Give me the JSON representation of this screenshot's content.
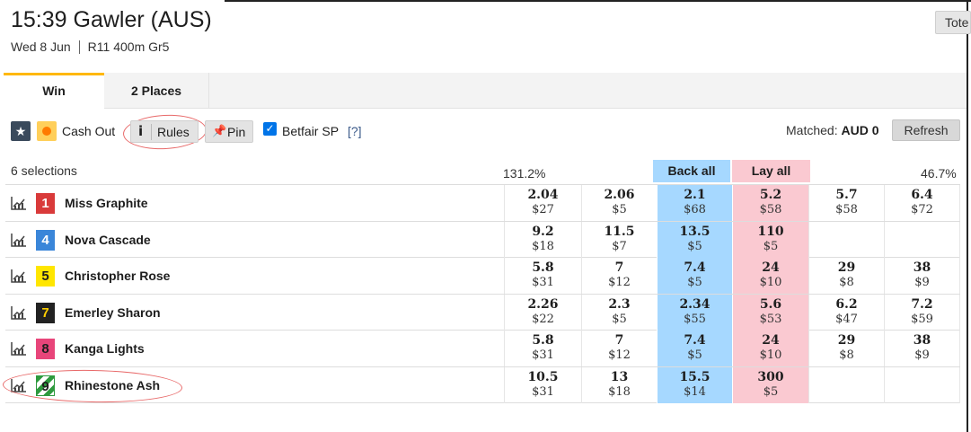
{
  "header": {
    "title": "15:39 Gawler (AUS)",
    "date": "Wed 8 Jun",
    "race_info": "R11 400m Gr5",
    "tote_label": "Tote"
  },
  "tabs": [
    {
      "label": "Win",
      "active": true
    },
    {
      "label": "2 Places",
      "active": false
    }
  ],
  "toolbar": {
    "cash_out_label": "Cash Out",
    "rules_label": "Rules",
    "pin_label": "Pin",
    "betfair_sp_label": "Betfair SP",
    "betfair_sp_checked": true,
    "help_label": "[?]",
    "matched_label": "Matched:",
    "matched_value": "AUD 0",
    "refresh_label": "Refresh"
  },
  "market": {
    "selections_label": "6 selections",
    "back_book": "131.2%",
    "lay_book": "46.7%",
    "back_all_label": "Back all",
    "lay_all_label": "Lay all"
  },
  "runners": [
    {
      "number": "1",
      "name": "Miss Graphite",
      "cloth_bg": "#d93a3a",
      "cloth_fg": "#ffffff",
      "prices": [
        [
          "2.04",
          "$27"
        ],
        [
          "2.06",
          "$5"
        ],
        [
          "2.1",
          "$68"
        ],
        [
          "5.2",
          "$58"
        ],
        [
          "5.7",
          "$58"
        ],
        [
          "6.4",
          "$72"
        ]
      ]
    },
    {
      "number": "4",
      "name": "Nova Cascade",
      "cloth_bg": "#3a86d9",
      "cloth_fg": "#ffffff",
      "prices": [
        [
          "9.2",
          "$18"
        ],
        [
          "11.5",
          "$7"
        ],
        [
          "13.5",
          "$5"
        ],
        [
          "110",
          "$5"
        ],
        [
          "",
          ""
        ],
        [
          "",
          ""
        ]
      ]
    },
    {
      "number": "5",
      "name": "Christopher Rose",
      "cloth_bg": "#ffe600",
      "cloth_fg": "#1e1e1e",
      "prices": [
        [
          "5.8",
          "$31"
        ],
        [
          "7",
          "$12"
        ],
        [
          "7.4",
          "$5"
        ],
        [
          "24",
          "$10"
        ],
        [
          "29",
          "$8"
        ],
        [
          "38",
          "$9"
        ]
      ]
    },
    {
      "number": "7",
      "name": "Emerley Sharon",
      "cloth_bg": "#222222",
      "cloth_fg": "#ffcf00",
      "prices": [
        [
          "2.26",
          "$22"
        ],
        [
          "2.3",
          "$5"
        ],
        [
          "2.34",
          "$55"
        ],
        [
          "5.6",
          "$53"
        ],
        [
          "6.2",
          "$47"
        ],
        [
          "7.2",
          "$59"
        ]
      ]
    },
    {
      "number": "8",
      "name": "Kanga Lights",
      "cloth_bg": "#e8457a",
      "cloth_fg": "#1e1e1e",
      "prices": [
        [
          "5.8",
          "$31"
        ],
        [
          "7",
          "$12"
        ],
        [
          "7.4",
          "$5"
        ],
        [
          "24",
          "$10"
        ],
        [
          "29",
          "$8"
        ],
        [
          "38",
          "$9"
        ]
      ]
    },
    {
      "number": "9",
      "name": "Rhinestone Ash",
      "cloth_bg": "striped-green-white",
      "cloth_fg": "#1e1e1e",
      "prices": [
        [
          "10.5",
          "$31"
        ],
        [
          "13",
          "$18"
        ],
        [
          "15.5",
          "$14"
        ],
        [
          "300",
          "$5"
        ],
        [
          "",
          ""
        ],
        [
          "",
          ""
        ]
      ]
    }
  ]
}
